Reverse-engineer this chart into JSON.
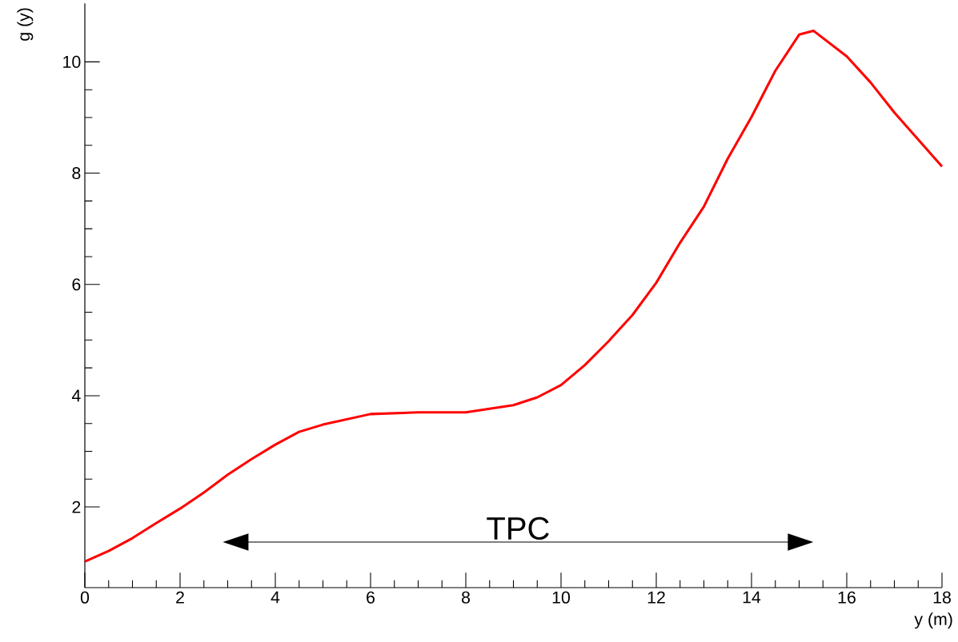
{
  "chart_data": {
    "type": "line",
    "xlabel": "y (m)",
    "ylabel": "g (y)",
    "x": [
      0,
      0.5,
      1,
      1.5,
      2,
      2.5,
      3,
      3.5,
      4,
      4.5,
      5,
      6,
      7,
      8,
      9,
      9.5,
      10,
      10.5,
      11,
      11.5,
      12,
      12.5,
      13,
      13.5,
      14,
      14.5,
      15,
      15.3,
      16,
      16.5,
      17,
      18
    ],
    "series": [
      {
        "color": "#ff0000",
        "values": [
          1.02,
          1.21,
          1.44,
          1.71,
          1.97,
          2.26,
          2.58,
          2.86,
          3.12,
          3.35,
          3.48,
          3.67,
          3.7,
          3.7,
          3.83,
          3.97,
          4.19,
          4.55,
          4.98,
          5.45,
          6.03,
          6.75,
          7.4,
          8.26,
          9.01,
          9.84,
          10.49,
          10.56,
          10.1,
          9.63,
          9.09,
          8.12
        ]
      }
    ],
    "xlim": [
      0,
      18
    ],
    "ylim": [
      0.55,
      11.05
    ],
    "xticks": [
      0,
      2,
      4,
      6,
      8,
      10,
      12,
      14,
      16,
      18
    ],
    "yticks": [
      2,
      4,
      6,
      8,
      10
    ],
    "grid": false,
    "marker": "none",
    "line_style": "solid",
    "annotations": [
      "TPC"
    ]
  }
}
